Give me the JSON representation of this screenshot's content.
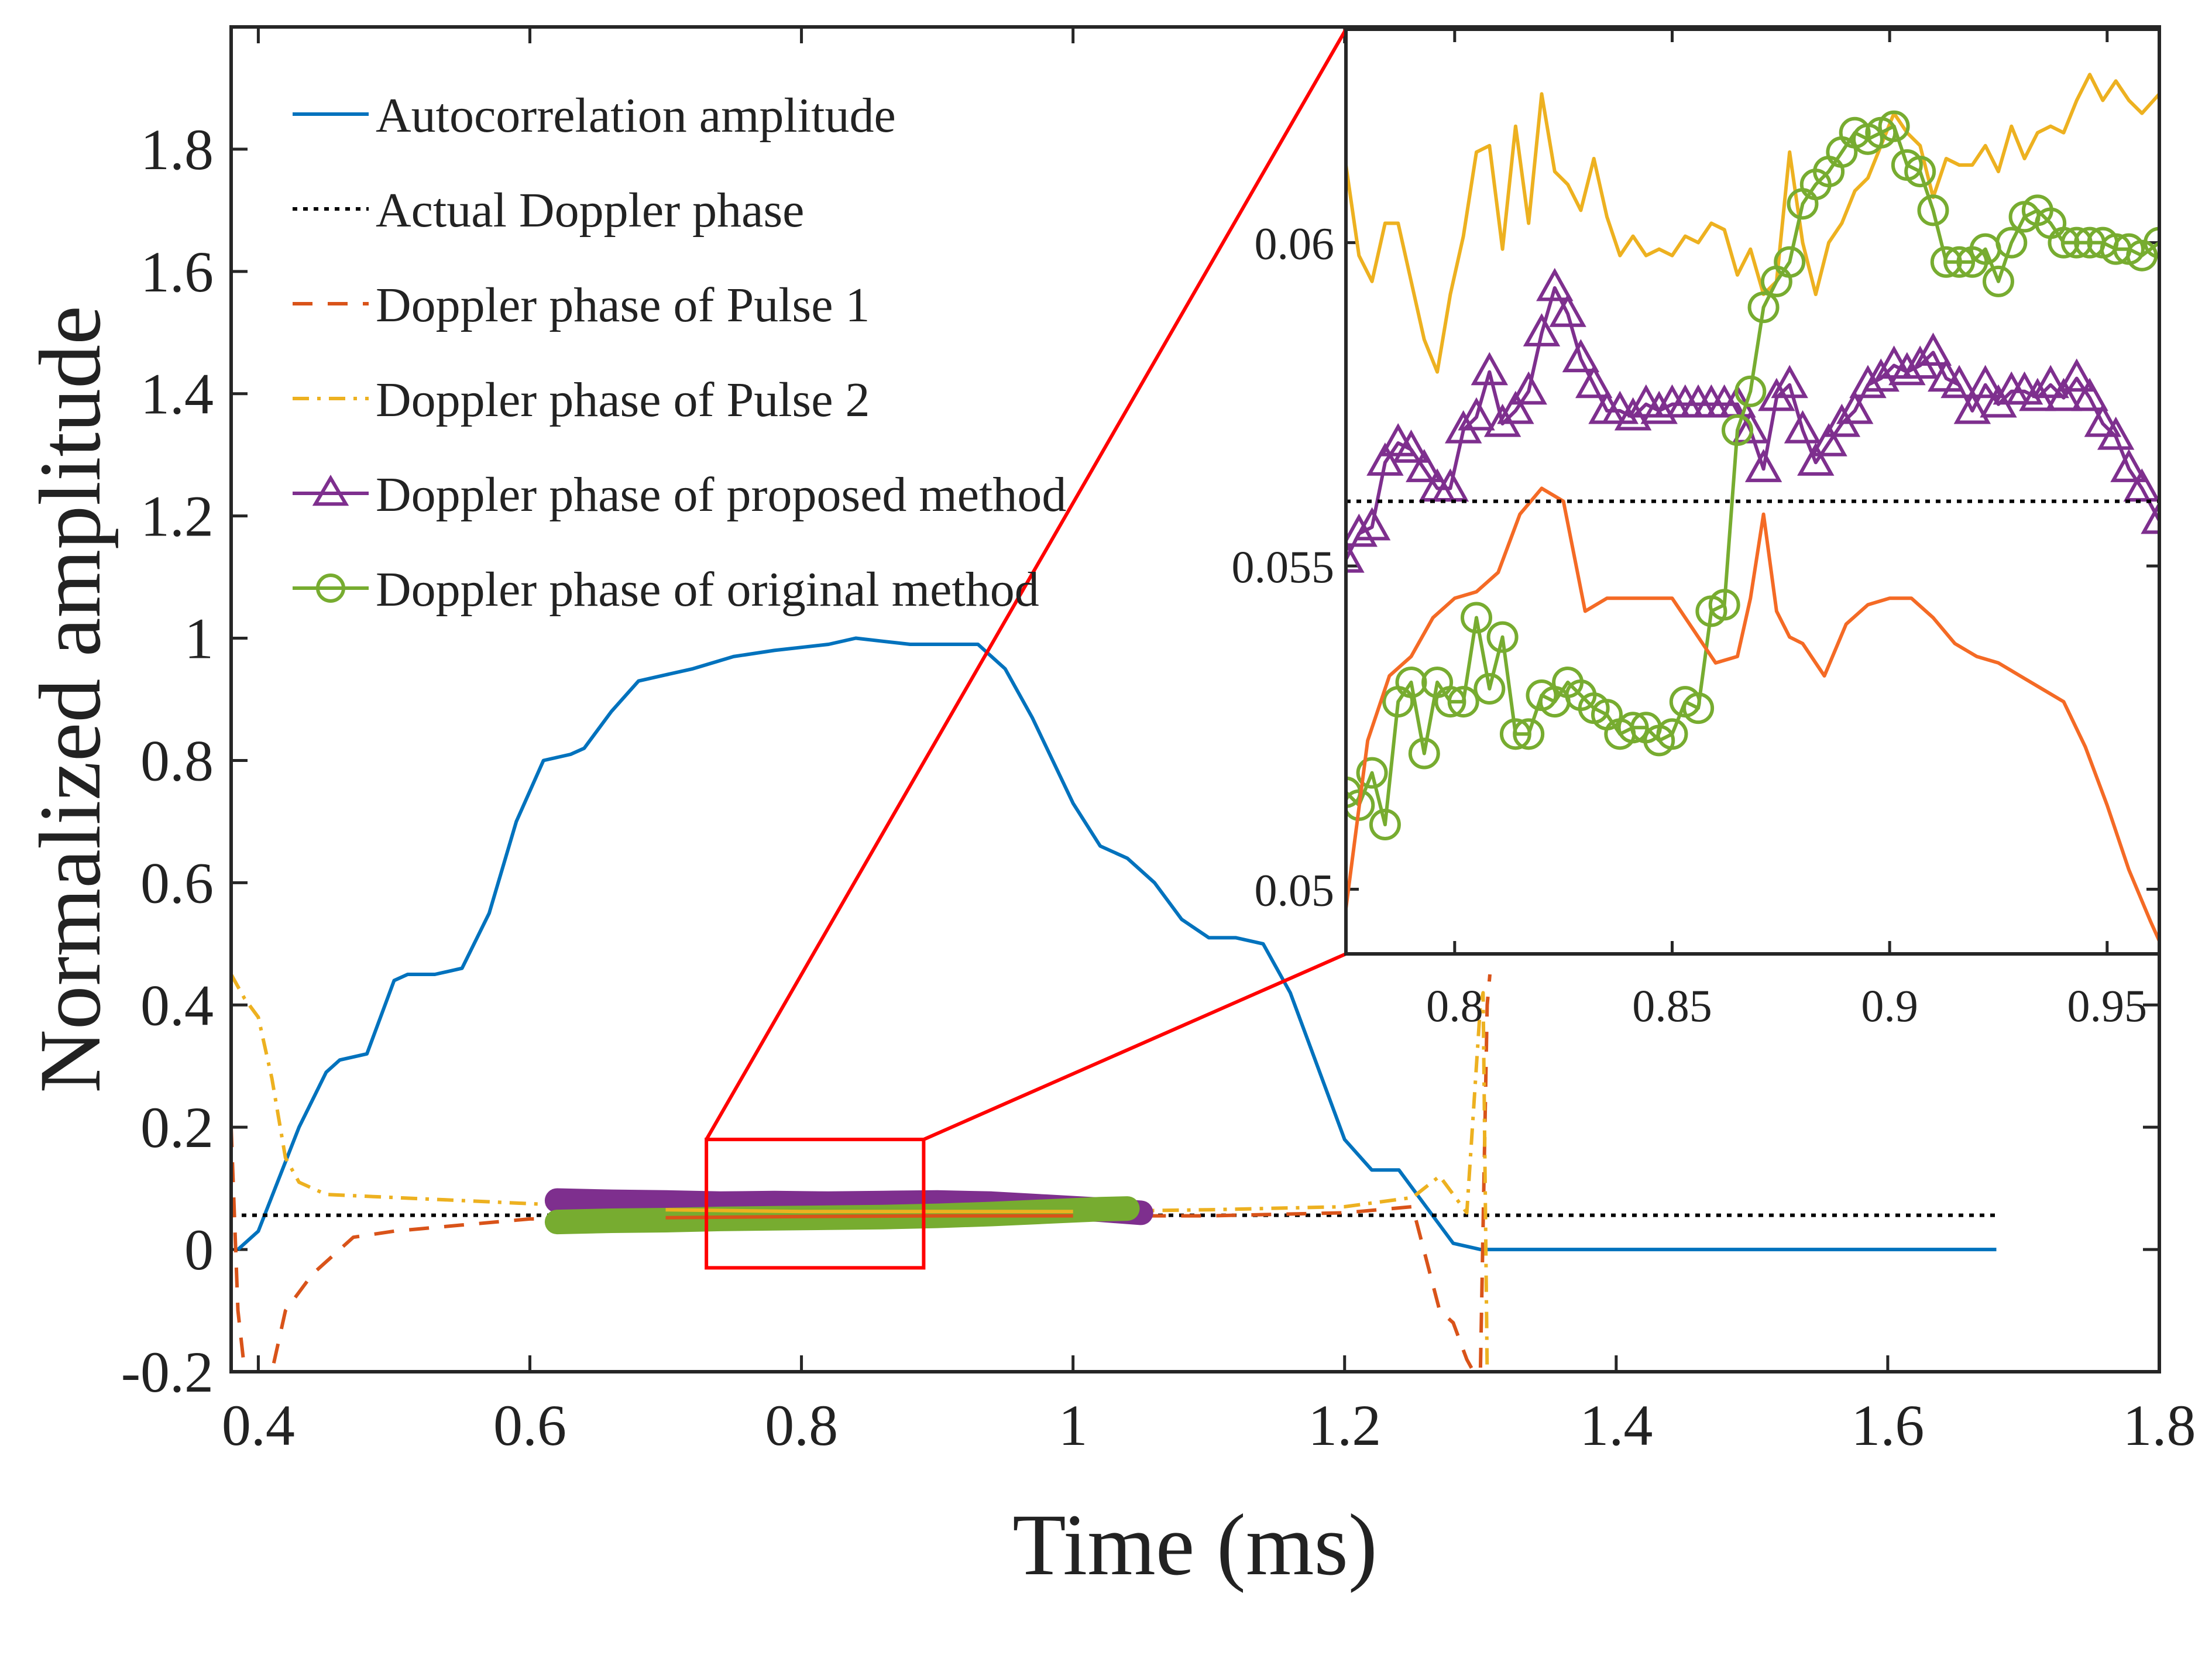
{
  "chart_data": [
    {
      "type": "line",
      "xlabel": "Time (ms)",
      "ylabel": "Normalized amplitude",
      "xlim": [
        0.38,
        1.8
      ],
      "ylim": [
        -0.2,
        2.0
      ],
      "xticks": [
        "0.4",
        "0.6",
        "0.8",
        "1",
        "1.2",
        "1.4",
        "1.6",
        "1.8"
      ],
      "yticks": [
        "-0.2",
        "0",
        "0.2",
        "0.4",
        "0.6",
        "0.8",
        "1",
        "1.2",
        "1.4",
        "1.6",
        "1.8"
      ],
      "legend_position": "top-left",
      "series": [
        {
          "name": "Autocorrelation amplitude",
          "color": "#0072BD",
          "style": "solid",
          "x": [
            0.385,
            0.4,
            0.43,
            0.45,
            0.46,
            0.48,
            0.5,
            0.51,
            0.53,
            0.55,
            0.57,
            0.59,
            0.61,
            0.63,
            0.64,
            0.66,
            0.68,
            0.7,
            0.72,
            0.75,
            0.78,
            0.8,
            0.82,
            0.84,
            0.86,
            0.88,
            0.9,
            0.93,
            0.95,
            0.97,
            1.0,
            1.02,
            1.04,
            1.06,
            1.08,
            1.1,
            1.12,
            1.14,
            1.16,
            1.18,
            1.2,
            1.22,
            1.24,
            1.26,
            1.28,
            1.3,
            1.35,
            1.45,
            1.55,
            1.68
          ],
          "values": [
            0.0,
            0.03,
            0.2,
            0.29,
            0.31,
            0.32,
            0.44,
            0.45,
            0.45,
            0.46,
            0.55,
            0.7,
            0.8,
            0.81,
            0.82,
            0.88,
            0.93,
            0.94,
            0.95,
            0.97,
            0.98,
            0.985,
            0.99,
            1.0,
            0.995,
            0.99,
            0.99,
            0.99,
            0.95,
            0.87,
            0.73,
            0.66,
            0.64,
            0.6,
            0.54,
            0.51,
            0.51,
            0.5,
            0.42,
            0.3,
            0.18,
            0.13,
            0.13,
            0.07,
            0.01,
            0.0,
            0.0,
            0.0,
            0.0,
            0.0
          ]
        },
        {
          "name": "Actual Doppler phase",
          "color": "#000000",
          "style": "dotted",
          "x": [
            0.38,
            1.68
          ],
          "values": [
            0.056,
            0.056
          ]
        },
        {
          "name": "Doppler phase of Pulse 1",
          "color": "#D95319",
          "style": "dashed",
          "x": [
            0.38,
            0.385,
            0.39,
            0.4,
            0.41,
            0.42,
            0.44,
            0.47,
            0.5,
            0.55,
            0.6,
            0.7,
            0.8,
            0.9,
            1.0,
            1.1,
            1.2,
            1.25,
            1.27,
            1.28,
            1.29,
            1.295,
            1.3,
            1.305,
            1.307
          ],
          "values": [
            0.2,
            -0.1,
            -0.2,
            -0.2,
            -0.2,
            -0.1,
            -0.04,
            0.02,
            0.03,
            0.04,
            0.05,
            0.052,
            0.054,
            0.055,
            0.055,
            0.055,
            0.06,
            0.07,
            -0.1,
            -0.12,
            -0.18,
            -0.2,
            -0.2,
            0.4,
            0.45
          ]
        },
        {
          "name": "Doppler phase of Pulse 2",
          "color": "#EDB120",
          "style": "dashdot",
          "x": [
            0.38,
            0.39,
            0.4,
            0.41,
            0.42,
            0.43,
            0.45,
            0.5,
            0.55,
            0.6,
            0.7,
            0.8,
            0.9,
            1.0,
            1.1,
            1.2,
            1.25,
            1.27,
            1.28,
            1.29,
            1.3,
            1.302,
            1.305
          ],
          "values": [
            0.45,
            0.41,
            0.38,
            0.28,
            0.15,
            0.11,
            0.09,
            0.085,
            0.08,
            0.075,
            0.065,
            0.062,
            0.062,
            0.062,
            0.065,
            0.07,
            0.085,
            0.12,
            0.09,
            0.06,
            0.4,
            0.42,
            -0.2
          ]
        },
        {
          "name": "Doppler phase of proposed method",
          "color": "#7E2F8E",
          "style": "solid",
          "marker": "triangle",
          "x": [
            0.62,
            0.66,
            0.7,
            0.74,
            0.78,
            0.82,
            0.86,
            0.9,
            0.94,
            0.98,
            1.02,
            1.05
          ],
          "values": [
            0.08,
            0.078,
            0.077,
            0.075,
            0.076,
            0.075,
            0.076,
            0.077,
            0.075,
            0.07,
            0.065,
            0.06
          ]
        },
        {
          "name": "Doppler phase of original method",
          "color": "#77AC30",
          "style": "solid",
          "marker": "circle",
          "x": [
            0.62,
            0.66,
            0.7,
            0.74,
            0.78,
            0.82,
            0.86,
            0.9,
            0.94,
            0.98,
            1.02,
            1.04
          ],
          "values": [
            0.045,
            0.047,
            0.048,
            0.05,
            0.051,
            0.052,
            0.053,
            0.055,
            0.058,
            0.062,
            0.066,
            0.067
          ]
        }
      ],
      "zoom_box": {
        "x": [
          0.73,
          0.89
        ],
        "y": [
          -0.03,
          0.18
        ]
      }
    },
    {
      "type": "line",
      "role": "inset",
      "xlim": [
        0.775,
        0.962
      ],
      "ylim": [
        0.049,
        0.0633
      ],
      "xticks": [
        "0.8",
        "0.85",
        "0.9",
        "0.95"
      ],
      "yticks": [
        "0.05",
        "0.055",
        "0.06"
      ],
      "series": [
        {
          "name": "Doppler phase of Pulse 2",
          "color": "#EDB120",
          "x": [
            0.775,
            0.778,
            0.781,
            0.784,
            0.787,
            0.79,
            0.793,
            0.796,
            0.799,
            0.802,
            0.805,
            0.808,
            0.811,
            0.814,
            0.817,
            0.82,
            0.823,
            0.826,
            0.829,
            0.832,
            0.835,
            0.838,
            0.841,
            0.844,
            0.847,
            0.85,
            0.853,
            0.856,
            0.859,
            0.862,
            0.865,
            0.868,
            0.871,
            0.874,
            0.877,
            0.88,
            0.883,
            0.886,
            0.889,
            0.892,
            0.895,
            0.898,
            0.901,
            0.904,
            0.907,
            0.91,
            0.913,
            0.916,
            0.919,
            0.922,
            0.925,
            0.928,
            0.931,
            0.934,
            0.937,
            0.94,
            0.943,
            0.946,
            0.949,
            0.952,
            0.955,
            0.958,
            0.962
          ],
          "values": [
            0.0612,
            0.0598,
            0.0594,
            0.0603,
            0.0603,
            0.0594,
            0.0585,
            0.058,
            0.0592,
            0.0601,
            0.0614,
            0.0615,
            0.0599,
            0.0618,
            0.0603,
            0.0623,
            0.0611,
            0.0609,
            0.0605,
            0.0613,
            0.0604,
            0.0598,
            0.0601,
            0.0598,
            0.0599,
            0.0598,
            0.0601,
            0.06,
            0.0603,
            0.0602,
            0.0595,
            0.0599,
            0.0592,
            0.0594,
            0.0614,
            0.06,
            0.0592,
            0.06,
            0.0603,
            0.0608,
            0.061,
            0.0615,
            0.062,
            0.0617,
            0.0615,
            0.0607,
            0.0613,
            0.0612,
            0.0612,
            0.0615,
            0.0611,
            0.0618,
            0.0613,
            0.0617,
            0.0618,
            0.0617,
            0.0622,
            0.0626,
            0.0622,
            0.0625,
            0.0622,
            0.062,
            0.0623
          ]
        },
        {
          "name": "Doppler phase of proposed method",
          "color": "#7E2F8E",
          "marker": "triangle",
          "x": [
            0.775,
            0.778,
            0.781,
            0.784,
            0.787,
            0.79,
            0.793,
            0.796,
            0.799,
            0.802,
            0.805,
            0.808,
            0.811,
            0.814,
            0.817,
            0.82,
            0.823,
            0.826,
            0.829,
            0.832,
            0.835,
            0.838,
            0.841,
            0.844,
            0.847,
            0.85,
            0.853,
            0.856,
            0.859,
            0.862,
            0.865,
            0.868,
            0.871,
            0.874,
            0.877,
            0.88,
            0.883,
            0.886,
            0.889,
            0.892,
            0.895,
            0.898,
            0.901,
            0.904,
            0.907,
            0.91,
            0.913,
            0.916,
            0.919,
            0.922,
            0.925,
            0.928,
            0.931,
            0.934,
            0.937,
            0.94,
            0.943,
            0.946,
            0.949,
            0.952,
            0.955,
            0.958,
            0.962
          ],
          "values": [
            0.0551,
            0.0555,
            0.0556,
            0.0566,
            0.0569,
            0.0568,
            0.0565,
            0.0562,
            0.0562,
            0.0571,
            0.0573,
            0.058,
            0.0572,
            0.0574,
            0.0577,
            0.0586,
            0.0593,
            0.0589,
            0.0582,
            0.0578,
            0.0574,
            0.0574,
            0.0573,
            0.0575,
            0.0574,
            0.0575,
            0.0575,
            0.0575,
            0.0575,
            0.0575,
            0.0575,
            0.0571,
            0.0565,
            0.0576,
            0.0578,
            0.0571,
            0.0566,
            0.0569,
            0.0572,
            0.0574,
            0.0578,
            0.0579,
            0.0581,
            0.058,
            0.0581,
            0.0583,
            0.0579,
            0.0578,
            0.0574,
            0.0578,
            0.0575,
            0.0577,
            0.0577,
            0.0576,
            0.0578,
            0.0576,
            0.0579,
            0.0576,
            0.0572,
            0.057,
            0.0565,
            0.0562,
            0.0557
          ]
        },
        {
          "name": "Doppler phase of original method",
          "color": "#77AC30",
          "marker": "circle",
          "x": [
            0.775,
            0.778,
            0.781,
            0.784,
            0.787,
            0.79,
            0.793,
            0.796,
            0.799,
            0.802,
            0.805,
            0.808,
            0.811,
            0.814,
            0.817,
            0.82,
            0.823,
            0.826,
            0.829,
            0.832,
            0.835,
            0.838,
            0.841,
            0.844,
            0.847,
            0.85,
            0.853,
            0.856,
            0.859,
            0.862,
            0.865,
            0.868,
            0.871,
            0.874,
            0.877,
            0.88,
            0.883,
            0.886,
            0.889,
            0.892,
            0.895,
            0.898,
            0.901,
            0.904,
            0.907,
            0.91,
            0.913,
            0.916,
            0.919,
            0.922,
            0.925,
            0.928,
            0.931,
            0.934,
            0.937,
            0.94,
            0.943,
            0.946,
            0.949,
            0.952,
            0.955,
            0.958,
            0.962
          ],
          "values": [
            0.0515,
            0.0513,
            0.0518,
            0.051,
            0.0529,
            0.0532,
            0.0521,
            0.0532,
            0.0529,
            0.0529,
            0.0542,
            0.0531,
            0.0539,
            0.0524,
            0.0524,
            0.053,
            0.0529,
            0.0532,
            0.053,
            0.0528,
            0.0527,
            0.0524,
            0.0525,
            0.0525,
            0.0523,
            0.0524,
            0.0529,
            0.0528,
            0.0543,
            0.0544,
            0.0571,
            0.0577,
            0.059,
            0.0594,
            0.0597,
            0.0606,
            0.0609,
            0.0611,
            0.0614,
            0.0617,
            0.0616,
            0.0617,
            0.0618,
            0.0612,
            0.0611,
            0.0605,
            0.0597,
            0.0597,
            0.0597,
            0.0599,
            0.0594,
            0.06,
            0.0604,
            0.0605,
            0.0603,
            0.06,
            0.06,
            0.06,
            0.06,
            0.0599,
            0.0599,
            0.0598,
            0.06
          ]
        },
        {
          "name": "Doppler phase of Pulse 1",
          "color": "#F46A25",
          "x": [
            0.775,
            0.78,
            0.785,
            0.79,
            0.795,
            0.8,
            0.805,
            0.81,
            0.815,
            0.82,
            0.825,
            0.83,
            0.835,
            0.84,
            0.845,
            0.85,
            0.855,
            0.86,
            0.865,
            0.868,
            0.871,
            0.874,
            0.877,
            0.88,
            0.885,
            0.89,
            0.895,
            0.9,
            0.905,
            0.91,
            0.915,
            0.92,
            0.925,
            0.93,
            0.935,
            0.94,
            0.945,
            0.95,
            0.955,
            0.96,
            0.962
          ],
          "values": [
            0.0497,
            0.0523,
            0.0533,
            0.0536,
            0.0542,
            0.0545,
            0.0546,
            0.0549,
            0.0558,
            0.0562,
            0.056,
            0.0543,
            0.0545,
            0.0545,
            0.0545,
            0.0545,
            0.054,
            0.0535,
            0.0536,
            0.0545,
            0.0558,
            0.0543,
            0.0539,
            0.0538,
            0.0533,
            0.0541,
            0.0544,
            0.0545,
            0.0545,
            0.0542,
            0.0538,
            0.0536,
            0.0535,
            0.0533,
            0.0531,
            0.0529,
            0.0522,
            0.0513,
            0.0503,
            0.0495,
            0.0492
          ]
        },
        {
          "name": "Actual Doppler phase",
          "color": "#000000",
          "style": "dotted",
          "x": [
            0.775,
            0.962
          ],
          "values": [
            0.056,
            0.056
          ]
        }
      ]
    }
  ]
}
